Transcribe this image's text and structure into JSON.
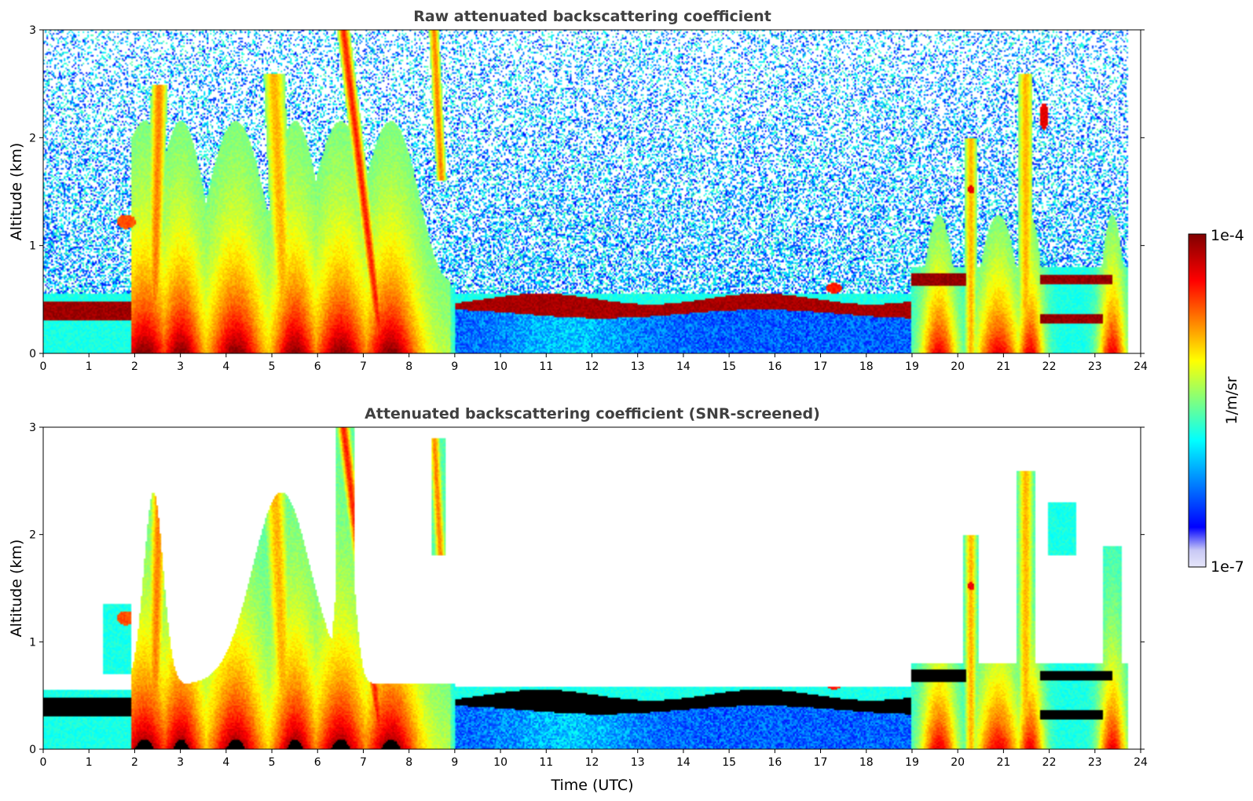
{
  "chart_data": [
    {
      "type": "heatmap",
      "title": "Raw attenuated backscattering coefficient",
      "xlabel": "",
      "ylabel": "Altitude (km)",
      "xlim": [
        0,
        24
      ],
      "ylim": [
        0,
        3
      ],
      "xticks": [
        0,
        1,
        2,
        3,
        4,
        5,
        6,
        7,
        8,
        9,
        10,
        11,
        12,
        13,
        14,
        15,
        16,
        17,
        18,
        19,
        20,
        21,
        22,
        23,
        24
      ],
      "yticks": [
        0,
        1,
        2,
        3
      ],
      "xtick_labels": [
        "0",
        "1",
        "2",
        "3",
        "4",
        "5",
        "6",
        "7",
        "8",
        "9",
        "10",
        "11",
        "12",
        "13",
        "14",
        "15",
        "16",
        "17",
        "18",
        "19",
        "20",
        "21",
        "22",
        "23",
        "24"
      ],
      "ytick_labels": [
        "0",
        "1",
        "2",
        "3"
      ],
      "mask": "none"
    },
    {
      "type": "heatmap",
      "title": "Attenuated backscattering coefficient (SNR-screened)",
      "xlabel": "Time (UTC)",
      "ylabel": "Altitude (km)",
      "xlim": [
        0,
        24
      ],
      "ylim": [
        0,
        3
      ],
      "xticks": [
        0,
        1,
        2,
        3,
        4,
        5,
        6,
        7,
        8,
        9,
        10,
        11,
        12,
        13,
        14,
        15,
        16,
        17,
        18,
        19,
        20,
        21,
        22,
        23,
        24
      ],
      "yticks": [
        0,
        1,
        2,
        3
      ],
      "xtick_labels": [
        "0",
        "1",
        "2",
        "3",
        "4",
        "5",
        "6",
        "7",
        "8",
        "9",
        "10",
        "11",
        "12",
        "13",
        "14",
        "15",
        "16",
        "17",
        "18",
        "19",
        "20",
        "21",
        "22",
        "23",
        "24"
      ],
      "ytick_labels": [
        "0",
        "1",
        "2",
        "3"
      ],
      "mask": "snr"
    }
  ],
  "colorbar": {
    "label": "1/m/sr",
    "max_label": "1e-4",
    "min_label": "1e-7",
    "scale": "log",
    "range": [
      1e-07,
      0.0001
    ],
    "colormap": "jet",
    "colors": [
      "#e6e6fa",
      "#0000ff",
      "#00ffff",
      "#ffff00",
      "#ff0000",
      "#800000"
    ]
  }
}
